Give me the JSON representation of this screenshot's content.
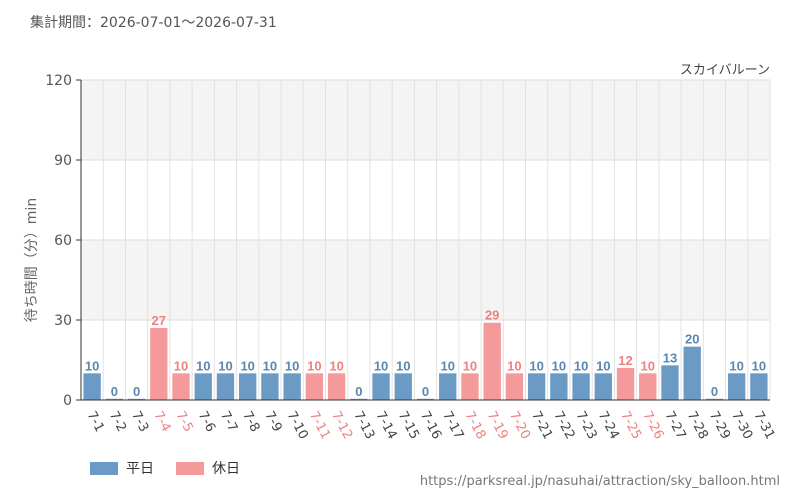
{
  "period_text": "集計期間：2026-07-01～2026-07-31",
  "source_url": "https://parksreal.jp/nasuhai/attraction/sky_balloon.html",
  "colors": {
    "weekday": "#6b9bc4",
    "holiday": "#f59a9a",
    "holiday_text": "#f08080",
    "weekday_text": "#5a86b0"
  },
  "legend": [
    {
      "label": "平日",
      "key": "weekday"
    },
    {
      "label": "休日",
      "key": "holiday"
    }
  ],
  "chart_data": {
    "type": "bar",
    "title": "スカイバルーン",
    "xlabel": "",
    "ylabel": "待ち時間（分）min",
    "ylim": [
      0,
      120
    ],
    "yticks": [
      0,
      30,
      60,
      90,
      120
    ],
    "grid": true,
    "legend_position": "bottom-left",
    "categories": [
      "7-1",
      "7-2",
      "7-3",
      "7-4",
      "7-5",
      "7-6",
      "7-7",
      "7-8",
      "7-9",
      "7-10",
      "7-11",
      "7-12",
      "7-13",
      "7-14",
      "7-15",
      "7-16",
      "7-17",
      "7-18",
      "7-19",
      "7-20",
      "7-21",
      "7-22",
      "7-23",
      "7-24",
      "7-25",
      "7-26",
      "7-27",
      "7-28",
      "7-29",
      "7-30",
      "7-31"
    ],
    "values": [
      10,
      0,
      0,
      27,
      10,
      10,
      10,
      10,
      10,
      10,
      10,
      10,
      0,
      10,
      10,
      0,
      10,
      10,
      29,
      10,
      10,
      10,
      10,
      10,
      12,
      10,
      13,
      20,
      0,
      10,
      10
    ],
    "day_type": [
      "weekday",
      "weekday",
      "weekday",
      "holiday",
      "holiday",
      "weekday",
      "weekday",
      "weekday",
      "weekday",
      "weekday",
      "holiday",
      "holiday",
      "weekday",
      "weekday",
      "weekday",
      "weekday",
      "weekday",
      "holiday",
      "holiday",
      "holiday",
      "weekday",
      "weekday",
      "weekday",
      "weekday",
      "holiday",
      "holiday",
      "weekday",
      "weekday",
      "weekday",
      "weekday",
      "weekday"
    ]
  }
}
